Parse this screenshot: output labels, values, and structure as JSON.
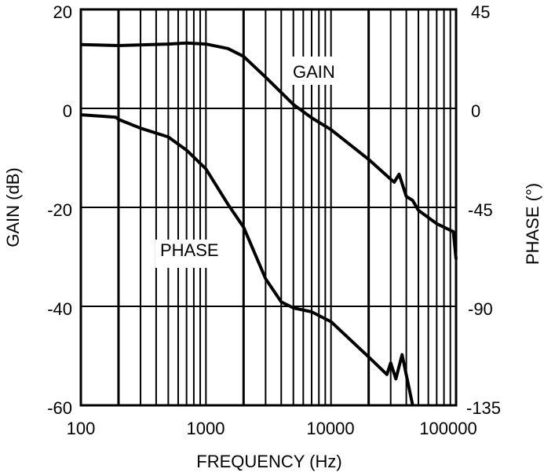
{
  "chart_data": {
    "type": "line",
    "title": "",
    "xlabel": "FREQUENCY (Hz)",
    "ylabel": "GAIN (dB)",
    "y2label": "PHASE (°)",
    "xscale": "log",
    "xlim": [
      100,
      100000
    ],
    "ylim": [
      -60,
      20
    ],
    "y2lim": [
      -135,
      45
    ],
    "grid": true,
    "legend": "inline labels",
    "x_ticks": [
      "100",
      "1000",
      "10000",
      "100000"
    ],
    "y_ticks": [
      "20",
      "0",
      "-20",
      "-40",
      "-60"
    ],
    "y2_ticks": [
      "45",
      "0",
      "-45",
      "-90",
      "-135"
    ],
    "annotations": [
      {
        "text": "GAIN",
        "near_x": 5000,
        "near_y_db": 7
      },
      {
        "text": "PHASE",
        "near_x": 800,
        "near_y_db": -29
      }
    ],
    "series": [
      {
        "name": "GAIN",
        "axis": "left",
        "x": [
          100,
          200,
          500,
          700,
          1000,
          1500,
          2000,
          3000,
          4000,
          5000,
          7000,
          10000,
          20000,
          30000,
          32000,
          35000,
          40000,
          45000,
          50000,
          70000,
          95000,
          100000
        ],
        "values": [
          12.9,
          12.7,
          13.0,
          13.2,
          13.0,
          12.1,
          10.5,
          6.3,
          3.2,
          0.8,
          -1.9,
          -4.3,
          -10.3,
          -14.3,
          -14.9,
          -13.3,
          -17.8,
          -18.6,
          -20.6,
          -23.3,
          -24.9,
          -30.5
        ]
      },
      {
        "name": "PHASE",
        "axis": "right",
        "x": [
          100,
          190,
          200,
          300,
          500,
          700,
          1000,
          1500,
          2000,
          3000,
          4000,
          5000,
          7000,
          10000,
          20000,
          28000,
          30000,
          33000,
          37000,
          45000
        ],
        "values": [
          -2.9,
          -4,
          -5,
          -9,
          -13,
          -19,
          -27.5,
          -43.6,
          -54,
          -77.5,
          -88,
          -90.7,
          -92.5,
          -97,
          -113,
          -121,
          -115.7,
          -123,
          -112,
          -135
        ]
      }
    ]
  },
  "labels": {
    "x_axis_title": "FREQUENCY (Hz)",
    "y_axis_title": "GAIN (dB)",
    "y2_axis_title": "PHASE (°)",
    "gain_label": "GAIN",
    "phase_label": "PHASE",
    "x_ticks": [
      "100",
      "1000",
      "10000",
      "100000"
    ],
    "y_ticks": [
      "20",
      "0",
      "-20",
      "-40",
      "-60"
    ],
    "y2_ticks": [
      "45",
      "0",
      "-45",
      "-90",
      "-135"
    ]
  },
  "colors": {
    "line": "#000000",
    "grid": "#000000",
    "background": "#ffffff"
  }
}
